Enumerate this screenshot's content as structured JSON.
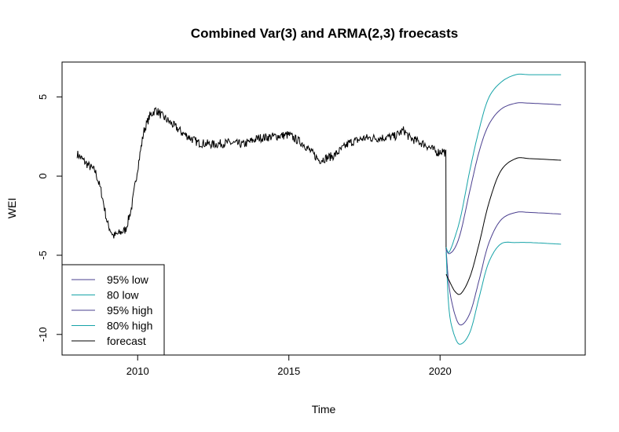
{
  "chart_data": {
    "type": "line",
    "title": "Combined Var(3) and ARMA(2,3) froecasts",
    "xlabel": "Time",
    "ylabel": "WEI",
    "xlim": [
      2007.5,
      2024.8
    ],
    "ylim": [
      -11.3,
      7.2
    ],
    "x_ticks": [
      2010,
      2015,
      2020
    ],
    "y_ticks": [
      -10,
      -5,
      0,
      5
    ],
    "grid": false,
    "legend_position": "bottom-left",
    "colors": {
      "history": "#000000",
      "ci95": "#4a3f8f",
      "ci80": "#16a3a8",
      "forecast": "#000000"
    },
    "history": {
      "x": [
        2008.0,
        2008.3,
        2008.6,
        2008.8,
        2009.0,
        2009.2,
        2009.4,
        2009.6,
        2009.8,
        2010.0,
        2010.2,
        2010.4,
        2010.6,
        2010.8,
        2011.0,
        2011.5,
        2012.0,
        2012.5,
        2013.0,
        2013.5,
        2014.0,
        2014.5,
        2015.0,
        2015.5,
        2016.0,
        2016.5,
        2017.0,
        2017.5,
        2018.0,
        2018.5,
        2018.8,
        2019.0,
        2019.5,
        2019.9,
        2020.1,
        2020.2
      ],
      "values": [
        1.4,
        0.8,
        0.3,
        -1.0,
        -3.0,
        -3.8,
        -3.6,
        -3.4,
        -2.0,
        0.5,
        2.8,
        3.8,
        4.2,
        3.8,
        3.5,
        2.7,
        2.1,
        2.0,
        2.1,
        2.0,
        2.4,
        2.5,
        2.6,
        2.0,
        1.0,
        1.3,
        2.1,
        2.4,
        2.4,
        2.5,
        2.9,
        2.4,
        2.0,
        1.5,
        1.6,
        1.4
      ]
    },
    "forecast_x": [
      2020.2,
      2020.3,
      2020.5,
      2020.7,
      2021.0,
      2021.3,
      2021.6,
      2022.0,
      2022.5,
      2023.0,
      2024.0
    ],
    "series": [
      {
        "name": "95% low",
        "values": [
          -4.6,
          -7.0,
          -8.8,
          -9.4,
          -8.6,
          -6.5,
          -4.3,
          -2.8,
          -2.3,
          -2.3,
          -2.4
        ]
      },
      {
        "name": "80 low",
        "values": [
          -4.8,
          -8.5,
          -10.2,
          -10.6,
          -9.8,
          -7.6,
          -5.5,
          -4.3,
          -4.2,
          -4.2,
          -4.3
        ]
      },
      {
        "name": "95% high",
        "values": [
          -4.6,
          -4.9,
          -4.5,
          -3.4,
          -0.8,
          1.6,
          3.2,
          4.2,
          4.6,
          4.6,
          4.5
        ]
      },
      {
        "name": "80% high",
        "values": [
          -4.5,
          -4.8,
          -3.8,
          -2.4,
          0.5,
          3.0,
          4.9,
          5.9,
          6.4,
          6.4,
          6.4
        ]
      },
      {
        "name": "forecast",
        "values": [
          -6.2,
          -6.6,
          -7.3,
          -7.4,
          -6.3,
          -4.2,
          -1.8,
          0.3,
          1.1,
          1.1,
          1.0
        ]
      }
    ],
    "legend": [
      {
        "label": "95% low",
        "color": "#4a3f8f"
      },
      {
        "label": "80 low",
        "color": "#16a3a8"
      },
      {
        "label": "95% high",
        "color": "#4a3f8f"
      },
      {
        "label": "80% high",
        "color": "#16a3a8"
      },
      {
        "label": "forecast",
        "color": "#000000"
      }
    ]
  }
}
